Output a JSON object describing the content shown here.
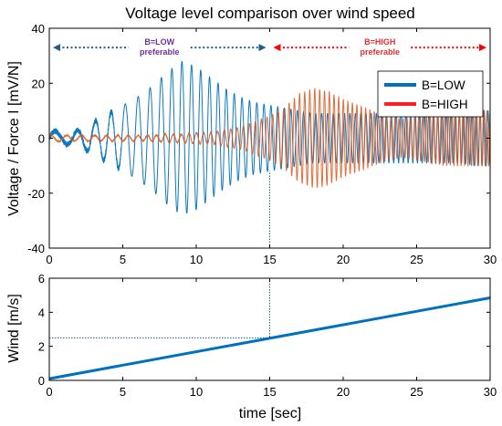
{
  "chart_data": [
    {
      "type": "line",
      "title": "Voltage level comparison over wind speed",
      "xlabel": "",
      "ylabel": "Voltage / Force I [mV/N]",
      "xlim": [
        0,
        30
      ],
      "ylim": [
        -40,
        40
      ],
      "xticks": [
        0,
        5,
        10,
        15,
        20,
        25,
        30
      ],
      "yticks": [
        -40,
        -20,
        0,
        20,
        40
      ],
      "grid": false,
      "legend_position": "top-right",
      "series": [
        {
          "name": "B=LOW",
          "color": "#0072BD",
          "envelope": {
            "x": [
              0,
              1,
              2,
              3,
              4,
              5,
              6,
              7,
              8,
              9,
              10,
              11,
              12,
              13,
              14,
              15,
              16,
              17,
              18,
              19,
              20,
              21,
              22,
              23,
              24,
              25,
              26,
              27,
              28,
              29,
              30
            ],
            "amplitude": [
              3,
              2,
              3,
              6,
              9,
              12,
              15,
              19,
              24,
              28,
              26,
              22,
              18,
              15,
              13,
              12,
              11,
              10,
              9,
              9,
              9,
              9,
              9,
              9,
              9,
              9,
              9,
              9,
              9,
              10,
              10
            ]
          }
        },
        {
          "name": "B=HIGH",
          "color": "#D95319",
          "envelope": {
            "x": [
              0,
              1,
              2,
              3,
              4,
              5,
              6,
              7,
              8,
              9,
              10,
              11,
              12,
              13,
              14,
              15,
              16,
              17,
              18,
              19,
              20,
              21,
              22,
              23,
              24,
              25,
              26,
              27,
              28,
              29,
              30
            ],
            "amplitude": [
              1.5,
              1,
              1,
              1,
              1,
              1,
              1,
              1,
              1.5,
              1.5,
              2,
              2,
              3,
              4,
              6,
              8,
              11,
              16,
              18,
              17,
              14,
              12,
              10,
              8,
              7,
              8,
              9,
              10,
              10,
              10,
              10
            ]
          }
        }
      ],
      "annotations": [
        {
          "id": "low",
          "text_line1": "B=LOW",
          "text_line2": "preferable",
          "color": "#7030A0",
          "arrow_color": "#1F5F8B",
          "from_x": 0,
          "to_x": 15
        },
        {
          "id": "high",
          "text_line1": "B=HIGH",
          "text_line2": "preferable",
          "color": "#E03030",
          "arrow_color": "#FF0000",
          "from_x": 15,
          "to_x": 30
        }
      ],
      "marker_line_x": 15
    },
    {
      "type": "line",
      "xlabel": "time [sec]",
      "ylabel": "Wind [m/s]",
      "xlim": [
        0,
        30
      ],
      "ylim": [
        0,
        6
      ],
      "xticks": [
        0,
        5,
        10,
        15,
        20,
        25,
        30
      ],
      "yticks": [
        0,
        2,
        4,
        6
      ],
      "grid": false,
      "series": [
        {
          "x": [
            0,
            30
          ],
          "y": [
            0.1,
            4.85
          ],
          "color": "#0072BD"
        }
      ],
      "marker_point": {
        "x": 15,
        "y": 2.5
      }
    }
  ]
}
